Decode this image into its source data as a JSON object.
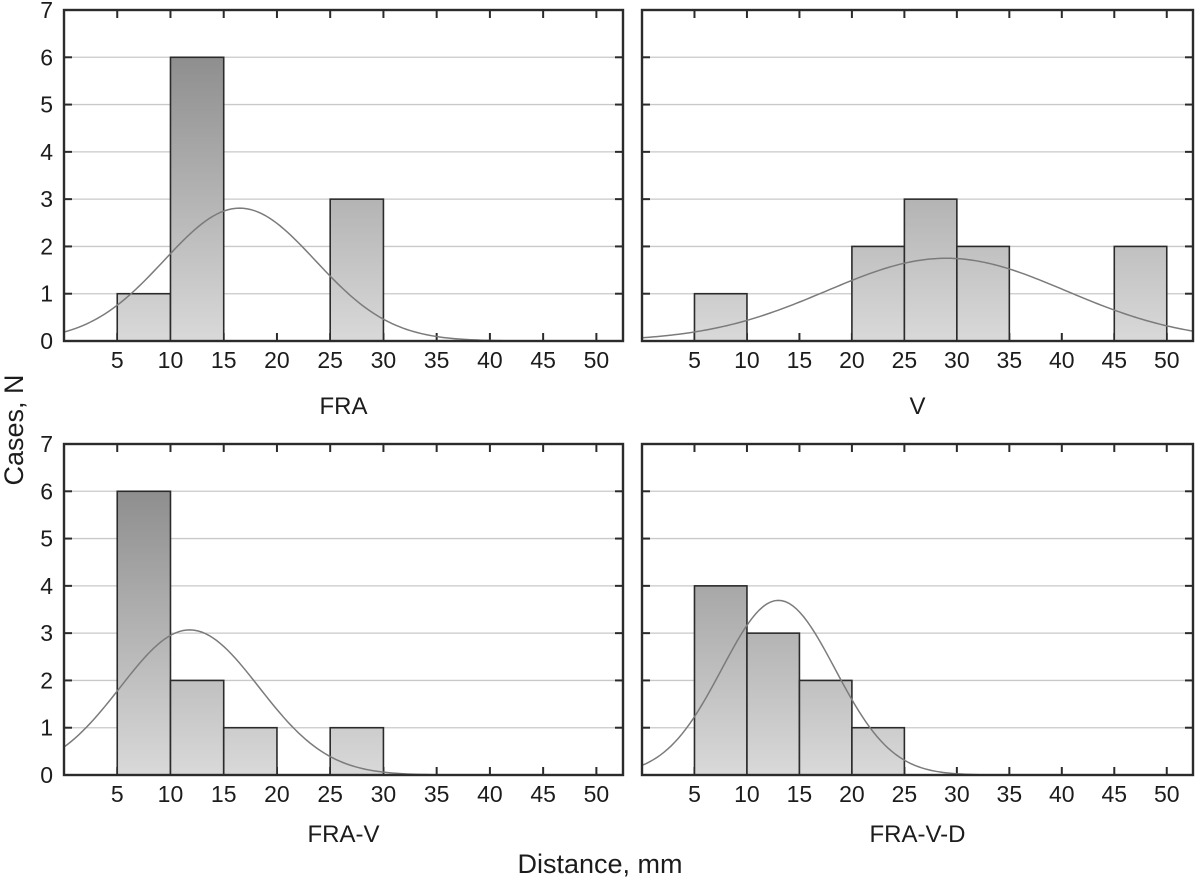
{
  "figure": {
    "xlabel": "Distance, mm",
    "ylabel": "Cases, N",
    "background": "#ffffff",
    "colors": {
      "text": "#1c1c1c",
      "axis": "#2b2b2b",
      "grid": "#c9c9c9",
      "bar_border": "#2b2b2b",
      "bar_gradient_bottom": "#d9d9d9",
      "bar_gradient_top": "#828282",
      "curve": "#7b7b7b"
    }
  },
  "chart_data": [
    {
      "type": "bar",
      "subtype": "histogram-with-normal-curve",
      "title": "FRA",
      "n_total": 10,
      "bin_width": 5,
      "x_domain": [
        0,
        52.5
      ],
      "y_domain": [
        0,
        7
      ],
      "x_ticks": [
        5,
        10,
        15,
        20,
        25,
        30,
        35,
        40,
        45,
        50
      ],
      "y_ticks": [
        0,
        1,
        2,
        3,
        4,
        5,
        6,
        7
      ],
      "gridlines_y": [
        1,
        2,
        3,
        4,
        5,
        6
      ],
      "show_y_tick_labels": true,
      "bins": [
        {
          "x0": 5,
          "x1": 10,
          "count": 1
        },
        {
          "x0": 10,
          "x1": 15,
          "count": 6
        },
        {
          "x0": 25,
          "x1": 30,
          "count": 3
        }
      ],
      "normal_curve": {
        "mean": 16.5,
        "sd": 7.1,
        "scale": 50,
        "peak_y": 2.8
      }
    },
    {
      "type": "bar",
      "subtype": "histogram-with-normal-curve",
      "title": "V",
      "n_total": 10,
      "bin_width": 5,
      "x_domain": [
        0,
        52.5
      ],
      "y_domain": [
        0,
        7
      ],
      "x_ticks": [
        5,
        10,
        15,
        20,
        25,
        30,
        35,
        40,
        45,
        50
      ],
      "y_ticks": [
        0,
        1,
        2,
        3,
        4,
        5,
        6,
        7
      ],
      "gridlines_y": [
        1,
        2,
        3,
        4,
        5,
        6
      ],
      "show_y_tick_labels": false,
      "bins": [
        {
          "x0": 5,
          "x1": 10,
          "count": 1
        },
        {
          "x0": 20,
          "x1": 25,
          "count": 2
        },
        {
          "x0": 25,
          "x1": 30,
          "count": 3
        },
        {
          "x0": 30,
          "x1": 35,
          "count": 2
        },
        {
          "x0": 45,
          "x1": 50,
          "count": 2
        }
      ],
      "normal_curve": {
        "mean": 29,
        "sd": 11.4,
        "scale": 50,
        "peak_y": 1.75
      }
    },
    {
      "type": "bar",
      "subtype": "histogram-with-normal-curve",
      "title": "FRA-V",
      "n_total": 10,
      "bin_width": 5,
      "x_domain": [
        0,
        52.5
      ],
      "y_domain": [
        0,
        7
      ],
      "x_ticks": [
        5,
        10,
        15,
        20,
        25,
        30,
        35,
        40,
        45,
        50
      ],
      "y_ticks": [
        0,
        1,
        2,
        3,
        4,
        5,
        6,
        7
      ],
      "gridlines_y": [
        1,
        2,
        3,
        4,
        5,
        6
      ],
      "show_y_tick_labels": true,
      "bins": [
        {
          "x0": 5,
          "x1": 10,
          "count": 6
        },
        {
          "x0": 10,
          "x1": 15,
          "count": 2
        },
        {
          "x0": 15,
          "x1": 20,
          "count": 1
        },
        {
          "x0": 25,
          "x1": 30,
          "count": 1
        }
      ],
      "normal_curve": {
        "mean": 11.8,
        "sd": 6.5,
        "scale": 50,
        "peak_y": 3.07
      }
    },
    {
      "type": "bar",
      "subtype": "histogram-with-normal-curve",
      "title": "FRA-V-D",
      "n_total": 10,
      "bin_width": 5,
      "x_domain": [
        0,
        52.5
      ],
      "y_domain": [
        0,
        7
      ],
      "x_ticks": [
        5,
        10,
        15,
        20,
        25,
        30,
        35,
        40,
        45,
        50
      ],
      "y_ticks": [
        0,
        1,
        2,
        3,
        4,
        5,
        6,
        7
      ],
      "gridlines_y": [
        1,
        2,
        3,
        4,
        5,
        6
      ],
      "show_y_tick_labels": false,
      "bins": [
        {
          "x0": 5,
          "x1": 10,
          "count": 4
        },
        {
          "x0": 10,
          "x1": 15,
          "count": 3
        },
        {
          "x0": 15,
          "x1": 20,
          "count": 2
        },
        {
          "x0": 20,
          "x1": 25,
          "count": 1
        }
      ],
      "normal_curve": {
        "mean": 13,
        "sd": 5.4,
        "scale": 50,
        "peak_y": 3.69
      }
    }
  ]
}
